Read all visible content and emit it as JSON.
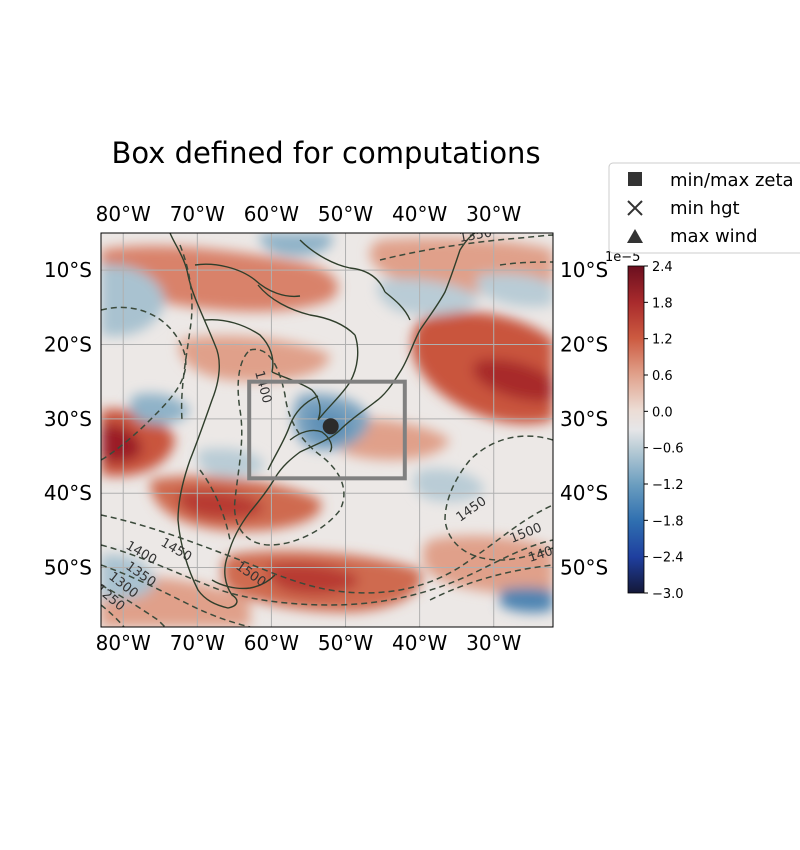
{
  "title": "Box defined for computations",
  "axes": {
    "lon_ticks": [
      "80°W",
      "70°W",
      "60°W",
      "50°W",
      "40°W",
      "30°W"
    ],
    "lat_ticks": [
      "10°S",
      "20°S",
      "30°S",
      "40°S",
      "50°S"
    ],
    "lon_values": [
      -80,
      -70,
      -60,
      -50,
      -40,
      -30
    ],
    "lat_values": [
      -10,
      -20,
      -30,
      -40,
      -50
    ],
    "extent": {
      "lon_min": -83,
      "lon_max": -22,
      "lat_min": -58,
      "lat_max": -5
    }
  },
  "colorbar": {
    "exponent_label": "1e−5",
    "ticks": [
      "2.4",
      "1.8",
      "1.2",
      "0.6",
      "0.0",
      "−0.6",
      "−1.2",
      "−1.8",
      "−2.4",
      "−3.0"
    ],
    "range": [
      -3.0,
      2.4
    ],
    "colormap": "diverging blue-white-red"
  },
  "legend": {
    "items": [
      {
        "marker": "square",
        "label": "min/max zeta"
      },
      {
        "marker": "x",
        "label": "min hgt"
      },
      {
        "marker": "triangle",
        "label": "max wind"
      }
    ]
  },
  "box": {
    "lon_min": -63,
    "lon_max": -42,
    "lat_min": -38,
    "lat_max": -25,
    "color": "#808080"
  },
  "point": {
    "lon": -52,
    "lat": -31,
    "color": "#2b2b2b"
  },
  "contour_labels": [
    "1350",
    "1400",
    "1450",
    "1500",
    "1400",
    "1450",
    "1350",
    "1400",
    "1450",
    "1500",
    "1350",
    "1300",
    "1250"
  ],
  "colors": {
    "coastline": "#2f3e2b",
    "contour": "#3b4a3b",
    "grid": "#b0b0b0"
  }
}
